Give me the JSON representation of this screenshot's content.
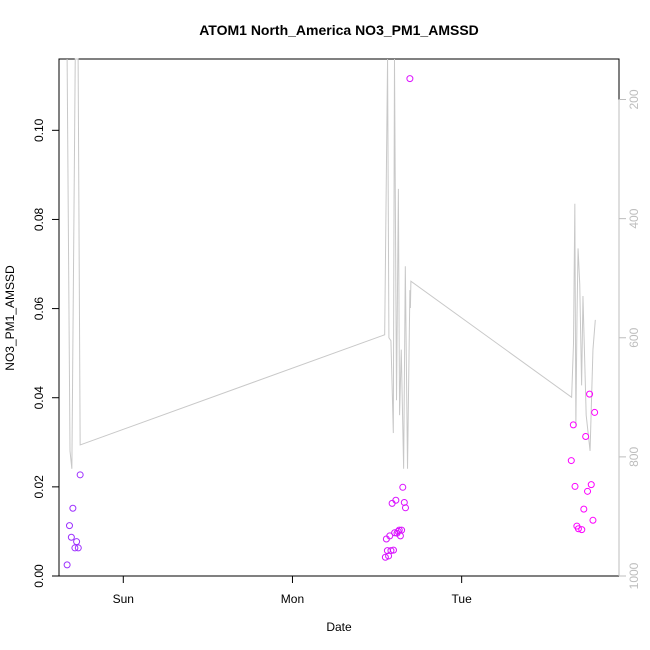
{
  "chart_data": {
    "type": "scatter",
    "title": "ATOM1 North_America NO3_PM1_AMSSD",
    "xlabel": "Date",
    "ylabel": "NO3_PM1_AMSSD",
    "x_tick_labels": [
      "Sun",
      "Mon",
      "Tue"
    ],
    "x_ticks_days": [
      1.0,
      2.0,
      3.0
    ],
    "xlim_days": [
      0.62,
      3.93
    ],
    "ylim": [
      0,
      0.116
    ],
    "y_ticks": [
      0.0,
      0.02,
      0.04,
      0.06,
      0.08,
      0.1
    ],
    "y_tick_labels": [
      "0.00",
      "0.02",
      "0.04",
      "0.06",
      "0.08",
      "0.10"
    ],
    "right_axis": {
      "ticks": [
        200,
        400,
        600,
        800,
        1000
      ],
      "tick_labels": [
        "200",
        "400",
        "600",
        "800",
        "1000"
      ],
      "lim": [
        1000,
        132
      ],
      "color": "#bdbdbd"
    },
    "grid": false,
    "series": [
      {
        "color_start": "#9b30ff",
        "color_end": "#ff00ff",
        "points": [
          [
            0.668,
            0.0025
          ],
          [
            0.682,
            0.0113
          ],
          [
            0.693,
            0.0087
          ],
          [
            0.702,
            0.0152
          ],
          [
            0.714,
            0.0063
          ],
          [
            0.724,
            0.0077
          ],
          [
            0.734,
            0.0063
          ],
          [
            0.745,
            0.0227
          ],
          [
            2.549,
            0.0042
          ],
          [
            2.555,
            0.0083
          ],
          [
            2.561,
            0.0057
          ],
          [
            2.568,
            0.0045
          ],
          [
            2.575,
            0.009
          ],
          [
            2.582,
            0.0057
          ],
          [
            2.589,
            0.0163
          ],
          [
            2.597,
            0.0058
          ],
          [
            2.604,
            0.0097
          ],
          [
            2.611,
            0.017
          ],
          [
            2.618,
            0.0096
          ],
          [
            2.624,
            0.01
          ],
          [
            2.631,
            0.0103
          ],
          [
            2.638,
            0.009
          ],
          [
            2.645,
            0.0103
          ],
          [
            2.652,
            0.0199
          ],
          [
            2.661,
            0.0165
          ],
          [
            2.668,
            0.0153
          ],
          [
            2.694,
            0.1116
          ],
          [
            3.648,
            0.0259
          ],
          [
            3.66,
            0.0339
          ],
          [
            3.67,
            0.0201
          ],
          [
            3.681,
            0.0112
          ],
          [
            3.69,
            0.0106
          ],
          [
            3.71,
            0.0104
          ],
          [
            3.722,
            0.015
          ],
          [
            3.733,
            0.0313
          ],
          [
            3.744,
            0.019
          ],
          [
            3.756,
            0.0408
          ],
          [
            3.766,
            0.0205
          ],
          [
            3.776,
            0.0125
          ],
          [
            3.786,
            0.0367
          ]
        ]
      },
      {
        "axis": "right",
        "color": "#c8c8c8",
        "points": [
          [
            0.668,
            132
          ],
          [
            0.685,
            790
          ],
          [
            0.696,
            820
          ],
          [
            0.716,
            132
          ],
          [
            0.733,
            132
          ],
          [
            0.745,
            780
          ],
          [
            2.545,
            595
          ],
          [
            2.562,
            132
          ],
          [
            2.57,
            600
          ],
          [
            2.582,
            605
          ],
          [
            2.596,
            760
          ],
          [
            2.603,
            132
          ],
          [
            2.615,
            705
          ],
          [
            2.626,
            350
          ],
          [
            2.633,
            730
          ],
          [
            2.643,
            620
          ],
          [
            2.657,
            820
          ],
          [
            2.667,
            480
          ],
          [
            2.68,
            820
          ],
          [
            2.694,
            520
          ],
          [
            2.697,
            550
          ],
          [
            2.7,
            505
          ],
          [
            3.65,
            700
          ],
          [
            3.661,
            610
          ],
          [
            3.669,
            375
          ],
          [
            3.675,
            750
          ],
          [
            3.682,
            560
          ],
          [
            3.688,
            450
          ],
          [
            3.698,
            510
          ],
          [
            3.709,
            680
          ],
          [
            3.717,
            530
          ],
          [
            3.736,
            730
          ],
          [
            3.759,
            790
          ],
          [
            3.776,
            620
          ],
          [
            3.79,
            570
          ]
        ]
      }
    ]
  }
}
